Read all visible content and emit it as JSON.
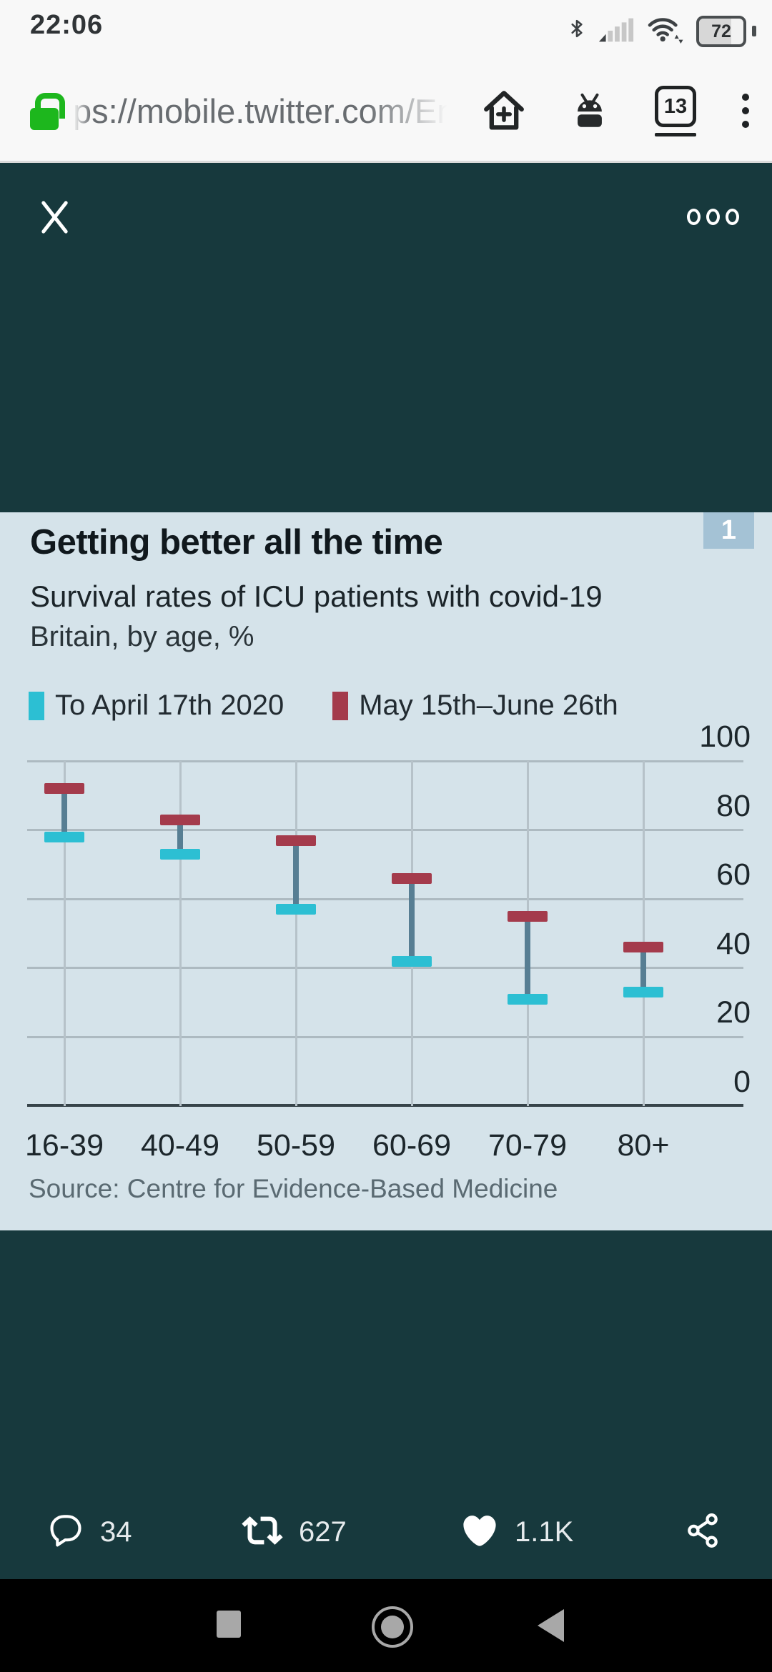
{
  "status_bar": {
    "time": "22:06",
    "battery_percent": "72"
  },
  "browser_bar": {
    "url": "ps://mobile.twitter.com/En",
    "tab_count": "13"
  },
  "chart": {
    "badge": "1",
    "title": "Getting better all the time",
    "subtitle": "Survival rates of ICU patients with covid-19",
    "note": "Britain, by age, %",
    "source": "Source: Centre for Evidence-Based Medicine"
  },
  "chart_data": {
    "type": "scatter",
    "variant": "dumbbell-range",
    "title": "Getting better all the time",
    "subtitle": "Survival rates of ICU patients with covid-19",
    "unit_note": "Britain, by age, %",
    "categories": [
      "16-39",
      "40-49",
      "50-59",
      "60-69",
      "70-79",
      "80+"
    ],
    "series": [
      {
        "name": "To April 17th 2020",
        "color": "#2cbfd3",
        "values": [
          78,
          73,
          57,
          42,
          31,
          33
        ]
      },
      {
        "name": "May 15th–June 26th",
        "color": "#a43b4c",
        "values": [
          92,
          83,
          77,
          66,
          55,
          46
        ]
      }
    ],
    "connector_color": "#577e93",
    "xlabel": "",
    "ylabel": "%",
    "ylim": [
      0,
      100
    ],
    "yticks": [
      0,
      20,
      40,
      60,
      80,
      100
    ],
    "grid": true,
    "legend_position": "top",
    "source": "Source: Centre for Evidence-Based Medicine"
  },
  "engagement": {
    "replies": "34",
    "retweets": "627",
    "likes": "1.1K"
  },
  "colors": {
    "viewer_bg": "#17393d",
    "panel_bg": "#d5e3ea",
    "badge_bg": "#a4c2d5",
    "lock_green": "#1db71d",
    "nav_icon": "#a8a8a8"
  }
}
